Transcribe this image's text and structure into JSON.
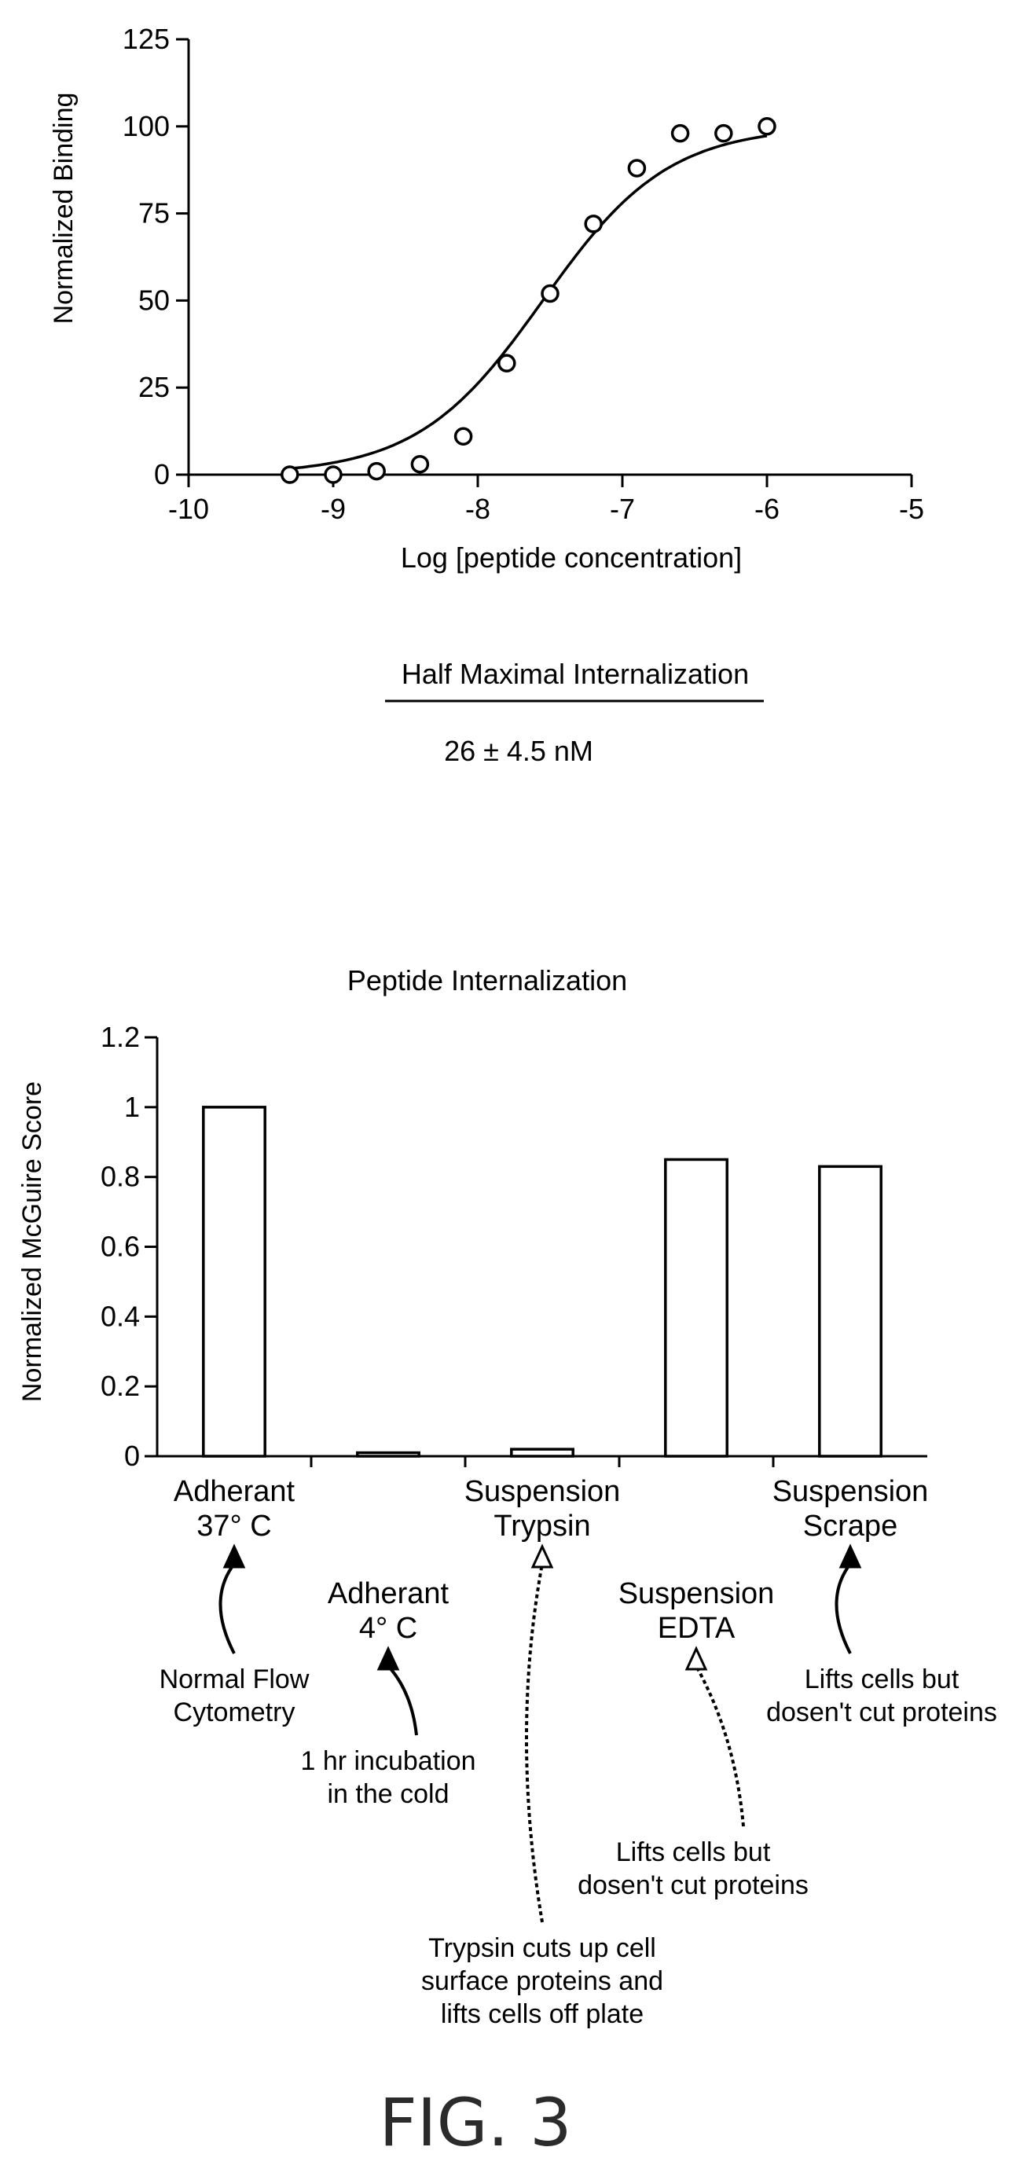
{
  "chart_data": [
    {
      "type": "scatter",
      "xlabel": "Log [peptide concentration]",
      "ylabel": "Normalized Binding",
      "xlim": [
        -10,
        -5
      ],
      "ylim": [
        0,
        125
      ],
      "x_ticks": [
        "-10",
        "-9",
        "-8",
        "-7",
        "-6",
        "-5"
      ],
      "y_ticks": [
        "0",
        "25",
        "50",
        "75",
        "100",
        "125"
      ],
      "series": [
        {
          "x": [
            -9.3,
            -9.0,
            -8.7,
            -8.4,
            -8.1,
            -7.8,
            -7.5,
            -7.2,
            -6.9,
            -6.6,
            -6.3,
            -6.0
          ],
          "y": [
            0,
            0,
            1,
            3,
            11,
            32,
            52,
            72,
            88,
            98,
            98,
            100
          ]
        }
      ],
      "fit_curve": {
        "bottom": 0,
        "top": 100,
        "log_ec50": -7.55,
        "hill_slope": 1.0
      },
      "annotation": {
        "heading": "Half Maximal Internalization",
        "value": "26 ± 4.5 nM"
      }
    },
    {
      "type": "bar",
      "title": "Peptide Internalization",
      "ylabel": "Normalized McGuire Score",
      "ylim": [
        0,
        1.2
      ],
      "y_ticks": [
        "0",
        "0.2",
        "0.4",
        "0.6",
        "0.8",
        "1",
        "1.2"
      ],
      "categories": [
        [
          "Adherant",
          "37° C"
        ],
        [
          "Adherant",
          "4° C"
        ],
        [
          "Suspension",
          "Trypsin"
        ],
        [
          "Suspension",
          "EDTA"
        ],
        [
          "Suspension",
          "Scrape"
        ]
      ],
      "values": [
        1.0,
        0.01,
        0.02,
        0.85,
        0.83
      ],
      "notes": [
        [
          "Normal Flow",
          "Cytometry"
        ],
        [
          "1 hr incubation",
          "in the cold"
        ],
        [
          "Trypsin cuts up cell",
          "surface proteins and",
          "lifts cells off plate"
        ],
        [
          "Lifts cells but",
          "dosen't cut proteins"
        ],
        [
          "Lifts cells but",
          "dosen't cut proteins"
        ]
      ]
    }
  ],
  "figure_label": "FIG. 3"
}
